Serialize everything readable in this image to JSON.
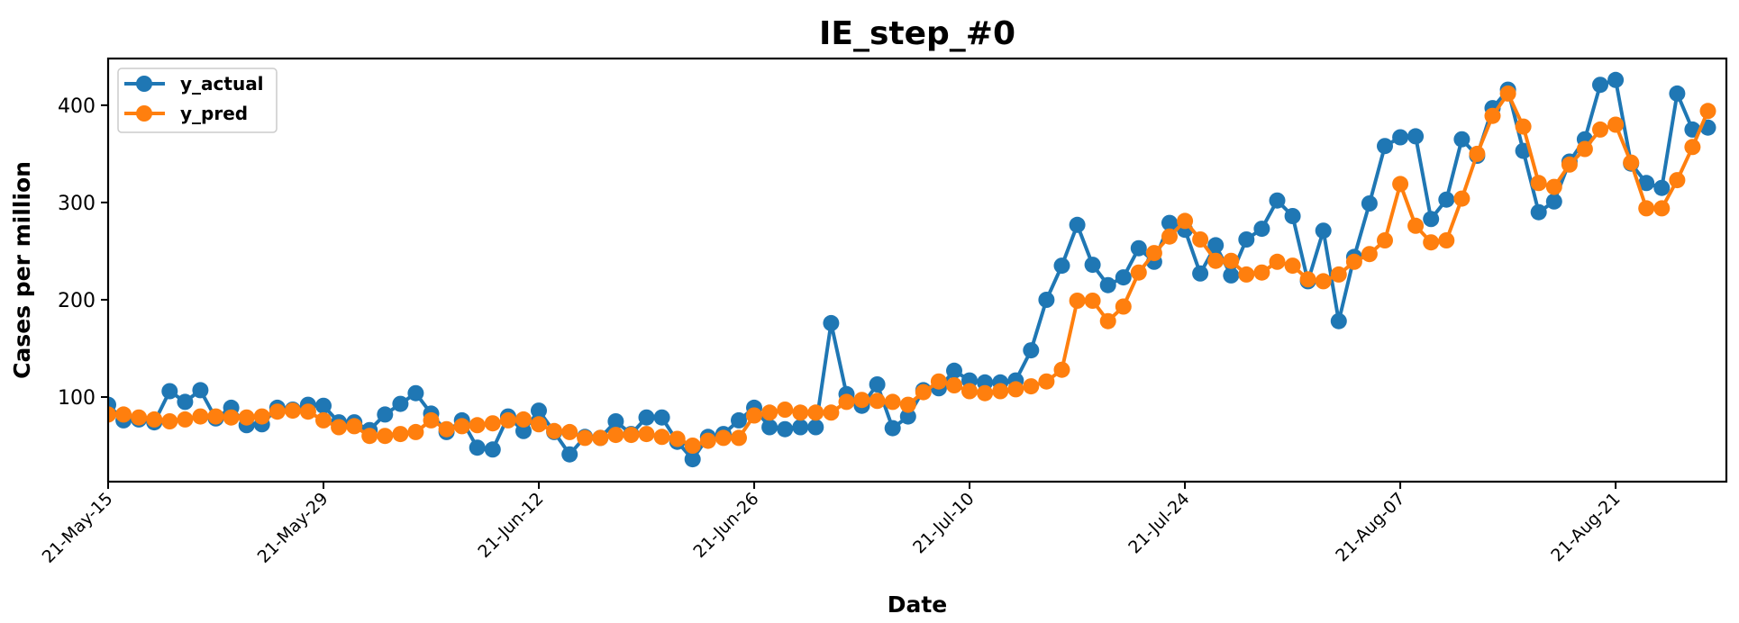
{
  "chart_data": {
    "type": "line",
    "title": "IE_step_#0",
    "xlabel": "Date",
    "ylabel": "Cases per million",
    "x_start": "2021-05-15",
    "xlim": [
      "2021-05-15",
      "2021-08-28"
    ],
    "ylim": [
      13,
      448
    ],
    "yticks": [
      100,
      200,
      300,
      400
    ],
    "xticks": [
      {
        "date": "2021-05-15",
        "label": "21-May-15"
      },
      {
        "date": "2021-05-29",
        "label": "21-May-29"
      },
      {
        "date": "2021-06-12",
        "label": "21-Jun-12"
      },
      {
        "date": "2021-06-26",
        "label": "21-Jun-26"
      },
      {
        "date": "2021-07-10",
        "label": "21-Jul-10"
      },
      {
        "date": "2021-07-24",
        "label": "21-Jul-24"
      },
      {
        "date": "2021-08-07",
        "label": "21-Aug-07"
      },
      {
        "date": "2021-08-21",
        "label": "21-Aug-21"
      }
    ],
    "grid": false,
    "legend_position": "top-left",
    "series": [
      {
        "name": "y_actual",
        "color": "#1f77b4",
        "values": [
          92,
          76,
          77,
          74,
          106,
          95,
          107,
          78,
          89,
          71,
          72,
          89,
          87,
          92,
          91,
          74,
          74,
          66,
          82,
          93,
          104,
          83,
          64,
          76,
          48,
          46,
          80,
          65,
          86,
          64,
          41,
          59,
          58,
          75,
          62,
          79,
          79,
          54,
          36,
          59,
          62,
          76,
          89,
          69,
          67,
          69,
          69,
          176,
          103,
          91,
          113,
          68,
          80,
          107,
          109,
          127,
          117,
          115,
          115,
          117,
          148,
          200,
          235,
          277,
          236,
          215,
          223,
          253,
          239,
          279,
          272,
          227,
          256,
          225,
          262,
          273,
          302,
          286,
          219,
          271,
          178,
          244,
          299,
          358,
          367,
          368,
          283,
          303,
          365,
          348,
          397,
          416,
          353,
          290,
          301,
          342,
          365,
          421,
          426,
          340,
          320,
          315,
          412,
          375,
          377
        ]
      },
      {
        "name": "y_pred",
        "color": "#ff7f0e",
        "values": [
          82,
          82,
          79,
          77,
          75,
          77,
          80,
          80,
          79,
          79,
          80,
          85,
          86,
          85,
          76,
          69,
          70,
          60,
          60,
          62,
          64,
          76,
          67,
          70,
          71,
          73,
          76,
          77,
          72,
          65,
          64,
          58,
          58,
          61,
          61,
          62,
          59,
          57,
          50,
          55,
          58,
          58,
          81,
          84,
          87,
          84,
          84,
          84,
          95,
          97,
          96,
          95,
          92,
          105,
          116,
          112,
          106,
          104,
          106,
          108,
          111,
          116,
          128,
          199,
          199,
          178,
          193,
          228,
          248,
          265,
          281,
          262,
          240,
          240,
          226,
          228,
          239,
          235,
          221,
          219,
          226,
          239,
          247,
          261,
          319,
          276,
          259,
          261,
          304,
          350,
          389,
          412,
          378,
          320,
          316,
          339,
          355,
          375,
          380,
          341,
          294,
          294,
          323,
          357,
          394
        ]
      }
    ]
  }
}
